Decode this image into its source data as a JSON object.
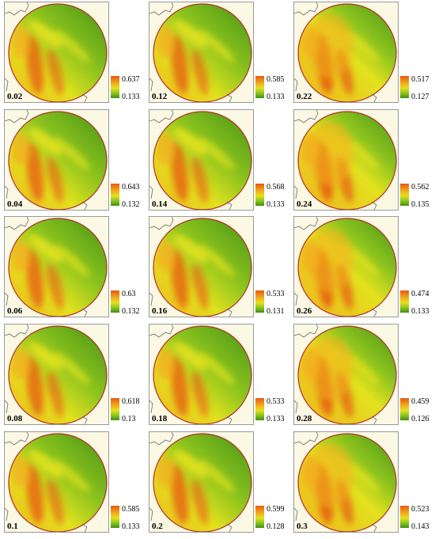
{
  "figure": {
    "panels": [
      {
        "label": "0.02",
        "legend_max": "0.637",
        "legend_min": "0.133"
      },
      {
        "label": "0.12",
        "legend_max": "0.585",
        "legend_min": "0.133"
      },
      {
        "label": "0.22",
        "legend_max": "0.517",
        "legend_min": "0.127"
      },
      {
        "label": "0.04",
        "legend_max": "0.643",
        "legend_min": "0.132"
      },
      {
        "label": "0.14",
        "legend_max": "0.568",
        "legend_min": "0.133"
      },
      {
        "label": "0.24",
        "legend_max": "0.562",
        "legend_min": "0.135"
      },
      {
        "label": "0.06",
        "legend_max": "0.63",
        "legend_min": "0.132"
      },
      {
        "label": "0.16",
        "legend_max": "0.533",
        "legend_min": "0.131"
      },
      {
        "label": "0.26",
        "legend_max": "0.474",
        "legend_min": "0.133"
      },
      {
        "label": "0.08",
        "legend_max": "0.618",
        "legend_min": "0.13"
      },
      {
        "label": "0.18",
        "legend_max": "0.533",
        "legend_min": "0.133"
      },
      {
        "label": "0.28",
        "legend_max": "0.459",
        "legend_min": "0.126"
      },
      {
        "label": "0.1",
        "legend_max": "0.585",
        "legend_min": "0.133"
      },
      {
        "label": "0.2",
        "legend_max": "0.599",
        "legend_min": "0.128"
      },
      {
        "label": "0.3",
        "legend_max": "0.523",
        "legend_min": "0.143"
      }
    ],
    "colors": {
      "high": "#e65a12",
      "mid_high": "#f2b01e",
      "mid": "#e2e21e",
      "mid_low": "#8cc31e",
      "low": "#3f8f15",
      "circle_border": "#b0302a",
      "land_background": "#fbf8e4",
      "coastline": "#6b6b6b"
    }
  }
}
